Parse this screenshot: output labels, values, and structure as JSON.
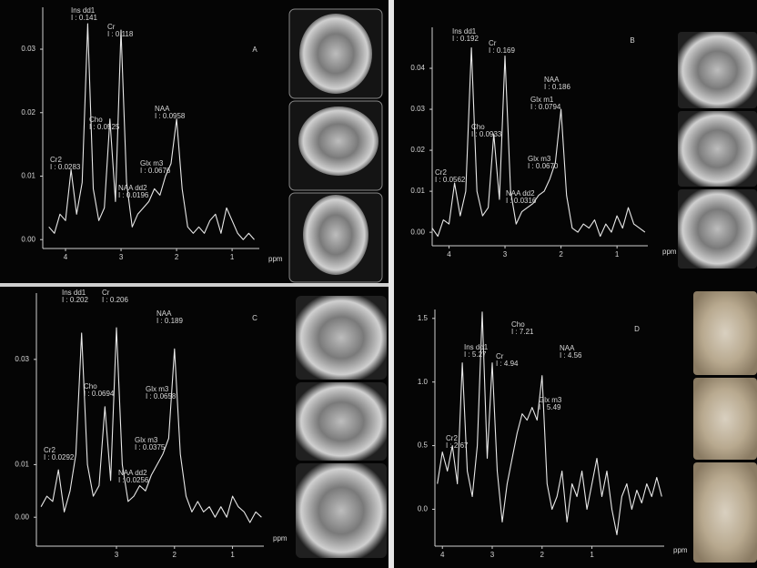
{
  "chart_data": [
    {
      "type": "line",
      "label": "A",
      "x_label": "ppm",
      "color": "#e8e8e8",
      "xlim": [
        4.41,
        0.51
      ],
      "ylim": [
        -0.0014,
        0.0366
      ],
      "xticks": [
        4,
        3,
        2,
        1
      ],
      "yticks": [
        {
          "value": 0,
          "label": "0.00"
        },
        0.01,
        0.02,
        0.03
      ],
      "x": [
        4.3,
        4.2,
        4.1,
        4.0,
        3.9,
        3.8,
        3.7,
        3.6,
        3.5,
        3.4,
        3.3,
        3.2,
        3.1,
        3.0,
        2.9,
        2.8,
        2.7,
        2.6,
        2.5,
        2.4,
        2.3,
        2.2,
        2.1,
        2.0,
        1.9,
        1.8,
        1.7,
        1.6,
        1.5,
        1.4,
        1.3,
        1.2,
        1.1,
        1.0,
        0.9,
        0.8,
        0.7,
        0.6
      ],
      "values": [
        0.002,
        0.001,
        0.004,
        0.003,
        0.011,
        0.004,
        0.009,
        0.034,
        0.008,
        0.003,
        0.005,
        0.019,
        0.006,
        0.033,
        0.009,
        0.002,
        0.004,
        0.005,
        0.006,
        0.008,
        0.007,
        0.01,
        0.012,
        0.019,
        0.008,
        0.002,
        0.001,
        0.002,
        0.001,
        0.003,
        0.004,
        0.001,
        0.005,
        0.003,
        0.001,
        0.0,
        0.001,
        0.0
      ],
      "annotations": [
        {
          "name": "Ins dd1",
          "text": "I : 0.141"
        },
        {
          "name": "Cr",
          "text": "I : 0.118"
        },
        {
          "name": "Cho",
          "text": "I : 0.0525"
        },
        {
          "name": "Cr2",
          "text": "I : 0.0283"
        },
        {
          "name": "NAA",
          "text": "I : 0.0958"
        },
        {
          "name": "Glx m3",
          "text": "I : 0.0676"
        },
        {
          "name": "NAA dd2",
          "text": "I : 0.0196"
        }
      ]
    },
    {
      "type": "line",
      "label": "B",
      "x_label": "ppm",
      "color": "#e8e8e8",
      "xlim": [
        4.3,
        0.45
      ],
      "ylim": [
        -0.0033,
        0.05
      ],
      "xticks": [
        4,
        3,
        2,
        1
      ],
      "yticks": [
        {
          "value": 0,
          "label": "0.00"
        },
        0.01,
        0.02,
        0.03,
        0.04
      ],
      "x": [
        4.3,
        4.2,
        4.1,
        4.0,
        3.9,
        3.8,
        3.7,
        3.6,
        3.5,
        3.4,
        3.3,
        3.2,
        3.1,
        3.0,
        2.9,
        2.8,
        2.7,
        2.6,
        2.5,
        2.4,
        2.3,
        2.2,
        2.1,
        2.0,
        1.9,
        1.8,
        1.7,
        1.6,
        1.5,
        1.4,
        1.3,
        1.2,
        1.1,
        1.0,
        0.9,
        0.8,
        0.7,
        0.6,
        0.5
      ],
      "values": [
        0.001,
        -0.001,
        0.003,
        0.002,
        0.012,
        0.004,
        0.01,
        0.045,
        0.01,
        0.004,
        0.006,
        0.024,
        0.008,
        0.043,
        0.01,
        0.002,
        0.005,
        0.006,
        0.007,
        0.009,
        0.01,
        0.013,
        0.017,
        0.03,
        0.009,
        0.001,
        0.0,
        0.002,
        0.001,
        0.003,
        -0.001,
        0.002,
        0.0,
        0.004,
        0.001,
        0.006,
        0.002,
        0.001,
        0.0
      ],
      "annotations": [
        {
          "name": "Ins dd1",
          "text": "I : 0.192"
        },
        {
          "name": "Cr",
          "text": "I : 0.169"
        },
        {
          "name": "Cho",
          "text": "I : 0.0933"
        },
        {
          "name": "Cr2",
          "text": "I : 0.0562"
        },
        {
          "name": "NAA",
          "text": "I : 0.186"
        },
        {
          "name": "Glx m1",
          "text": "I : 0.0794"
        },
        {
          "name": "Glx m3",
          "text": "I : 0.0670"
        },
        {
          "name": "NAA dd2",
          "text": "I : 0.0316"
        }
      ]
    },
    {
      "type": "line",
      "label": "C",
      "x_label": "ppm",
      "color": "#e8e8e8",
      "xlim": [
        4.38,
        0.46
      ],
      "ylim": [
        -0.0055,
        0.0426
      ],
      "xticks": [
        3,
        2,
        1
      ],
      "yticks": [
        {
          "value": 0,
          "label": "0.00"
        },
        0.01,
        0.03
      ],
      "x": [
        4.3,
        4.2,
        4.1,
        4.0,
        3.9,
        3.8,
        3.7,
        3.6,
        3.5,
        3.4,
        3.3,
        3.2,
        3.1,
        3.0,
        2.9,
        2.8,
        2.7,
        2.6,
        2.5,
        2.4,
        2.3,
        2.2,
        2.1,
        2.0,
        1.9,
        1.8,
        1.7,
        1.6,
        1.5,
        1.4,
        1.3,
        1.2,
        1.1,
        1.0,
        0.9,
        0.8,
        0.7,
        0.6,
        0.5
      ],
      "values": [
        0.002,
        0.004,
        0.003,
        0.009,
        0.001,
        0.005,
        0.012,
        0.035,
        0.01,
        0.004,
        0.006,
        0.021,
        0.007,
        0.036,
        0.01,
        0.003,
        0.004,
        0.006,
        0.005,
        0.008,
        0.01,
        0.012,
        0.015,
        0.032,
        0.012,
        0.004,
        0.001,
        0.003,
        0.001,
        0.002,
        0.0,
        0.002,
        0.0,
        0.004,
        0.002,
        0.001,
        -0.001,
        0.001,
        0.0
      ],
      "annotations": [
        {
          "name": "Ins dd1",
          "text": "I : 0.202"
        },
        {
          "name": "Cr",
          "text": "I : 0.206"
        },
        {
          "name": "Cho",
          "text": "I : 0.0694"
        },
        {
          "name": "Cr2",
          "text": "I : 0.0292"
        },
        {
          "name": "NAA",
          "text": "I : 0.189"
        },
        {
          "name": "Glx m3",
          "text": "I : 0.0658"
        },
        {
          "name": "Glx m3",
          "text": "I : 0.0375"
        },
        {
          "name": "NAA dd2",
          "text": "I : 0.0256"
        }
      ]
    },
    {
      "type": "line",
      "label": "D",
      "x_label": "ppm",
      "color": "#e8e8e8",
      "xlim": [
        4.15,
        -0.45
      ],
      "ylim": [
        -0.29,
        1.57
      ],
      "xticks": [
        4,
        3,
        2,
        1
      ],
      "yticks": [
        {
          "value": 0,
          "label": "0.0"
        },
        0.5,
        {
          "value": 1,
          "label": "1.0"
        },
        1.5
      ],
      "x": [
        4.1,
        4.0,
        3.9,
        3.8,
        3.7,
        3.6,
        3.5,
        3.4,
        3.3,
        3.2,
        3.1,
        3.0,
        2.9,
        2.8,
        2.7,
        2.6,
        2.5,
        2.4,
        2.3,
        2.2,
        2.1,
        2.0,
        1.9,
        1.8,
        1.7,
        1.6,
        1.5,
        1.4,
        1.3,
        1.2,
        1.1,
        1.0,
        0.9,
        0.8,
        0.7,
        0.6,
        0.5,
        0.4,
        0.3,
        0.2,
        0.1,
        0.0,
        -0.1,
        -0.2,
        -0.3,
        -0.4
      ],
      "values": [
        0.2,
        0.45,
        0.3,
        0.5,
        0.2,
        1.15,
        0.3,
        0.1,
        0.5,
        1.55,
        0.4,
        1.15,
        0.3,
        -0.1,
        0.2,
        0.4,
        0.6,
        0.75,
        0.7,
        0.8,
        0.7,
        1.05,
        0.2,
        0.0,
        0.1,
        0.3,
        -0.1,
        0.2,
        0.1,
        0.3,
        0.0,
        0.2,
        0.4,
        0.1,
        0.3,
        0.0,
        -0.2,
        0.1,
        0.2,
        0.0,
        0.15,
        0.05,
        0.2,
        0.1,
        0.25,
        0.1
      ],
      "annotations": [
        {
          "name": "Cho",
          "text": "I : 7.21"
        },
        {
          "name": "Ins dd1",
          "text": "I : 5.27"
        },
        {
          "name": "Cr",
          "text": "I : 4.94"
        },
        {
          "name": "NAA",
          "text": "I : 4.56"
        },
        {
          "name": "Glx m3",
          "text": "I : 5.49"
        },
        {
          "name": "Cr2",
          "text": "I : 2.67"
        }
      ]
    }
  ]
}
